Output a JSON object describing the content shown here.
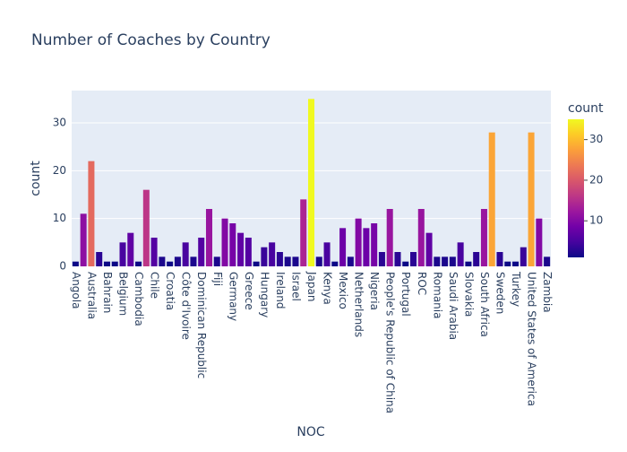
{
  "chart_data": {
    "type": "bar",
    "title": "Number of Coaches by Country",
    "x_label": "NOC",
    "y_label": "count",
    "categories": [
      "Angola",
      null,
      "Australia",
      null,
      "Bahrain",
      null,
      "Belgium",
      null,
      "Cambodia",
      null,
      "Chile",
      null,
      "Croatia",
      null,
      "Côte d'Ivoire",
      null,
      "Dominican Republic",
      null,
      "Fiji",
      null,
      "Germany",
      null,
      "Greece",
      null,
      "Hungary",
      null,
      "Ireland",
      null,
      "Israel",
      null,
      "Japan",
      null,
      "Kenya",
      null,
      "Mexico",
      null,
      "Netherlands",
      null,
      "Nigeria",
      null,
      "People's Republic of China",
      null,
      "Portugal",
      null,
      "ROC",
      null,
      "Romania",
      null,
      "Saudi Arabia",
      null,
      "Slovakia",
      null,
      "South Africa",
      null,
      "Sweden",
      null,
      "Turkey",
      null,
      "United States of America",
      null,
      "Zambia"
    ],
    "values": [
      1,
      11,
      22,
      3,
      1,
      1,
      5,
      7,
      1,
      16,
      6,
      2,
      1,
      2,
      5,
      2,
      6,
      12,
      2,
      10,
      9,
      7,
      6,
      1,
      4,
      5,
      3,
      2,
      2,
      14,
      35,
      2,
      5,
      1,
      8,
      2,
      10,
      8,
      9,
      3,
      12,
      3,
      1,
      3,
      12,
      7,
      2,
      2,
      2,
      5,
      1,
      3,
      12,
      28,
      3,
      1,
      1,
      4,
      28,
      10,
      2
    ],
    "ylim": [
      0,
      36.75
    ],
    "yticks": [
      0,
      10,
      20,
      30
    ],
    "grid": true,
    "colorscale": [
      "#0d0887",
      "#46039f",
      "#7201a8",
      "#9c179e",
      "#bd3786",
      "#d8576b",
      "#ed7953",
      "#fb9f3a",
      "#fdca26",
      "#f0f921"
    ],
    "colorbar_title": "count",
    "colorbar_ticks": [
      10,
      20,
      30
    ]
  }
}
